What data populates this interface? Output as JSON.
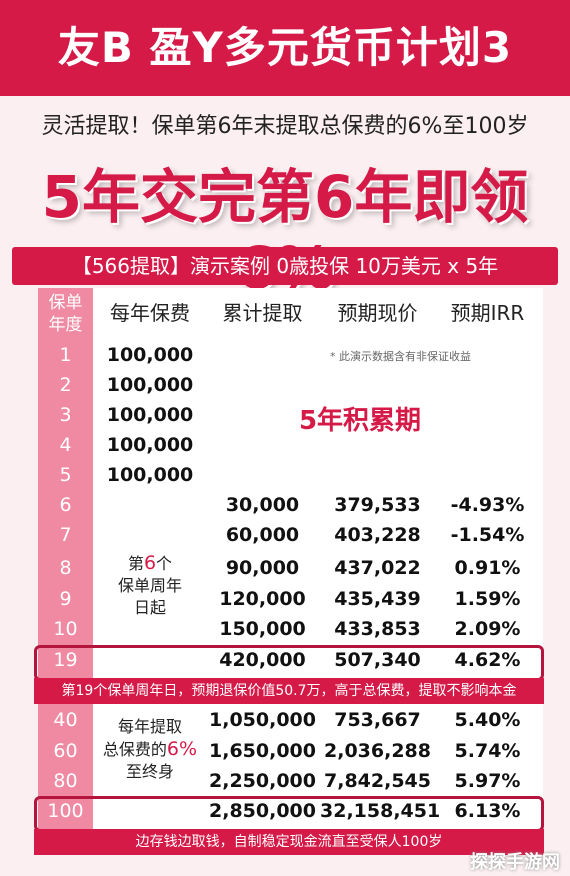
{
  "header": {
    "title": "友B 盈Y多元货币计划3"
  },
  "subtitle": "灵活提取！保单第6年末提取总保费的6%至100岁",
  "headline": "5年交完第6年即领6%",
  "banner": "【566提取】演示案例   0歳投保  10万美元 x 5年",
  "table": {
    "headers": {
      "year_line1": "保单",
      "year_line2": "年度",
      "premium": "每年保费",
      "cumulative": "累计提取",
      "value": "预期现价",
      "irr": "预期IRR"
    },
    "disclaimer": "* 此演示数据含有非保证收益",
    "accumulation_label": "5年积累期",
    "premium_rows": [
      {
        "year": "1",
        "premium": "100,000"
      },
      {
        "year": "2",
        "premium": "100,000"
      },
      {
        "year": "3",
        "premium": "100,000"
      },
      {
        "year": "4",
        "premium": "100,000"
      },
      {
        "year": "5",
        "premium": "100,000"
      }
    ],
    "group1": {
      "line1a": "第",
      "line1b": "6",
      "line1c": "个",
      "line2": "保单周年",
      "line3": "日起"
    },
    "withdraw_rows": [
      {
        "year": "6",
        "cumulative": "30,000",
        "value": "379,533",
        "irr": "-4.93%"
      },
      {
        "year": "7",
        "cumulative": "60,000",
        "value": "403,228",
        "irr": "-1.54%"
      },
      {
        "year": "8",
        "cumulative": "90,000",
        "value": "437,022",
        "irr": "0.91%"
      },
      {
        "year": "9",
        "cumulative": "120,000",
        "value": "435,439",
        "irr": "1.59%"
      },
      {
        "year": "10",
        "cumulative": "150,000",
        "value": "433,853",
        "irr": "2.09%"
      }
    ],
    "highlight19": {
      "year": "19",
      "cumulative": "420,000",
      "value": "507,340",
      "irr": "4.62%",
      "note": "第19个保单周年日，预期退保价值50.7万，高于总保费，提取不影响本金"
    },
    "group2": {
      "line1": "每年提取",
      "line2a": "总保费的",
      "line2b": "6%",
      "line3": "至终身"
    },
    "late_rows": [
      {
        "year": "40",
        "cumulative": "1,050,000",
        "value": "753,667",
        "irr": "5.40%"
      },
      {
        "year": "60",
        "cumulative": "1,650,000",
        "value": "2,036,288",
        "irr": "5.74%"
      },
      {
        "year": "80",
        "cumulative": "2,250,000",
        "value": "7,842,545",
        "irr": "5.97%"
      }
    ],
    "highlight100": {
      "year": "100",
      "cumulative": "2,850,000",
      "value": "32,158,451",
      "irr": "6.13%",
      "note": "边存钱边取钱，自制稳定现金流直至受保人100岁"
    }
  },
  "watermark": "探探手游网"
}
